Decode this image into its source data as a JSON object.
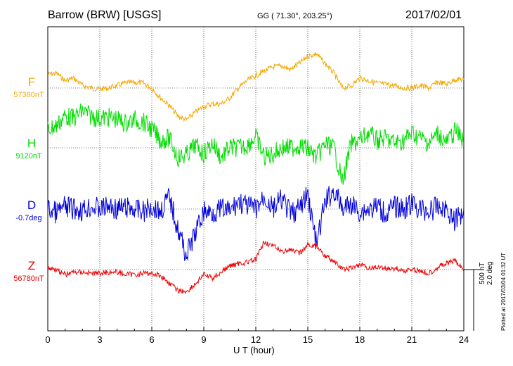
{
  "header": {
    "title": "Barrow (BRW)  [USGS]",
    "coords": "GG ( 71.30°, 203.25°)",
    "date": "2017/02/01"
  },
  "side": {
    "scale_label": "500 nT\n2.0 deg",
    "plotted": "Plotted at 2017/03/04 01:32 UT"
  },
  "colors": {
    "F": "#f4a800",
    "H": "#00dd00",
    "D": "#0000dd",
    "Z": "#ee0000"
  },
  "chart_data": {
    "type": "line",
    "xlabel": "U T (hour)",
    "xlim": [
      0,
      24
    ],
    "xticks": [
      "0",
      "3",
      "6",
      "9",
      "12",
      "15",
      "18",
      "21",
      "24"
    ],
    "y_unit": "nT (offset from baseline)",
    "series": [
      {
        "name": "F",
        "baseline_label": "57360nT",
        "x": [
          0,
          0.5,
          1,
          1.5,
          2,
          2.5,
          3,
          3.5,
          4,
          4.5,
          5,
          5.5,
          6,
          6.5,
          7,
          7.5,
          8,
          8.5,
          9,
          9.5,
          10,
          10.5,
          11,
          11.5,
          12,
          12.5,
          13,
          13.5,
          14,
          14.5,
          15,
          15.5,
          16,
          16.5,
          17,
          17.5,
          18,
          18.5,
          19,
          19.5,
          20,
          20.5,
          21,
          21.5,
          22,
          22.5,
          23,
          23.5,
          24
        ],
        "values": [
          110,
          120,
          60,
          80,
          20,
          0,
          -10,
          0,
          20,
          40,
          45,
          40,
          0,
          -80,
          -140,
          -230,
          -260,
          -200,
          -150,
          -130,
          -130,
          -80,
          0,
          60,
          100,
          140,
          170,
          180,
          150,
          200,
          260,
          280,
          200,
          120,
          0,
          20,
          80,
          60,
          40,
          30,
          20,
          0,
          0,
          20,
          0,
          50,
          30,
          70,
          70
        ]
      },
      {
        "name": "H",
        "baseline_label": "9120nT",
        "x": [
          0,
          0.5,
          1,
          1.5,
          2,
          2.5,
          3,
          3.5,
          4,
          4.5,
          5,
          5.5,
          6,
          6.5,
          7,
          7.5,
          8,
          8.5,
          9,
          9.5,
          10,
          10.5,
          11,
          11.5,
          12,
          12.5,
          13,
          13.5,
          14,
          14.5,
          15,
          15.5,
          16,
          16.5,
          17,
          17.5,
          18,
          18.5,
          19,
          19.5,
          20,
          20.5,
          21,
          21.5,
          22,
          22.5,
          23,
          23.5,
          24
        ],
        "values": [
          150,
          180,
          260,
          240,
          300,
          260,
          240,
          250,
          230,
          200,
          230,
          210,
          150,
          60,
          80,
          -80,
          -60,
          20,
          -50,
          40,
          -80,
          0,
          0,
          20,
          90,
          -80,
          -50,
          0,
          0,
          20,
          -10,
          -80,
          30,
          0,
          -280,
          30,
          60,
          120,
          60,
          80,
          40,
          60,
          120,
          80,
          40,
          120,
          40,
          140,
          60
        ]
      },
      {
        "name": "D",
        "baseline_label": "-0.7deg",
        "x": [
          0,
          0.5,
          1,
          1.5,
          2,
          2.5,
          3,
          3.5,
          4,
          4.5,
          5,
          5.5,
          6,
          6.5,
          7,
          7.5,
          8,
          8.5,
          9,
          9.5,
          10,
          10.5,
          11,
          11.5,
          12,
          12.5,
          13,
          13.5,
          14,
          14.5,
          15,
          15.5,
          16,
          16.5,
          17,
          17.5,
          18,
          18.5,
          19,
          19.5,
          20,
          20.5,
          21,
          21.5,
          22,
          22.5,
          23,
          23.5,
          24
        ],
        "values": [
          0,
          -30,
          20,
          0,
          -10,
          20,
          0,
          20,
          0,
          10,
          0,
          -20,
          20,
          -20,
          100,
          -160,
          -380,
          -200,
          -20,
          -30,
          0,
          -20,
          60,
          20,
          0,
          100,
          0,
          80,
          -40,
          0,
          120,
          -300,
          60,
          150,
          0,
          40,
          -20,
          0,
          20,
          -40,
          20,
          0,
          40,
          0,
          -20,
          20,
          0,
          -100,
          0
        ]
      },
      {
        "name": "Z",
        "baseline_label": "56780nT",
        "x": [
          0,
          0.5,
          1,
          1.5,
          2,
          2.5,
          3,
          3.5,
          4,
          4.5,
          5,
          5.5,
          6,
          6.5,
          7,
          7.5,
          8,
          8.5,
          9,
          9.5,
          10,
          10.5,
          11,
          11.5,
          12,
          12.5,
          13,
          13.5,
          14,
          14.5,
          15,
          15.5,
          16,
          16.5,
          17,
          17.5,
          18,
          18.5,
          19,
          19.5,
          20,
          20.5,
          21,
          21.5,
          22,
          22.5,
          23,
          23.5,
          24
        ],
        "values": [
          20,
          0,
          -40,
          -20,
          -20,
          -30,
          -30,
          -20,
          -20,
          -40,
          -40,
          -30,
          -30,
          -50,
          -110,
          -170,
          -180,
          -120,
          -40,
          -70,
          -20,
          30,
          50,
          60,
          80,
          230,
          190,
          150,
          160,
          130,
          200,
          200,
          110,
          70,
          0,
          10,
          40,
          10,
          20,
          10,
          10,
          -10,
          0,
          -10,
          -30,
          20,
          50,
          70,
          0
        ]
      }
    ]
  }
}
